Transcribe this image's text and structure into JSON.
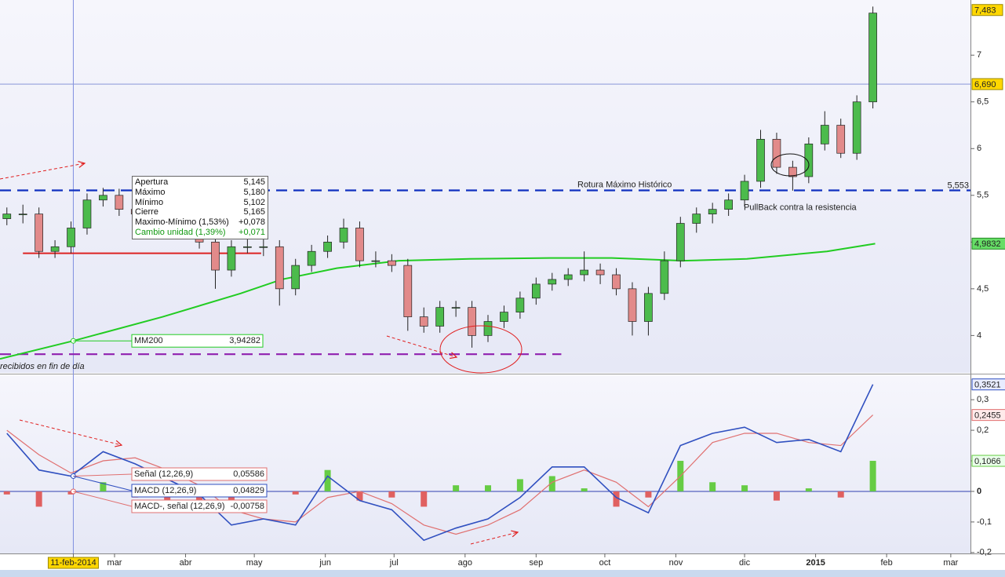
{
  "chart_data": [
    {
      "type": "candlestick",
      "xlim": [
        9,
        432.6
      ],
      "ylim": [
        3.6,
        7.59
      ],
      "xticks": [
        {
          "value": 41,
          "label": "11-feb-2014"
        },
        {
          "value": 59,
          "label": "mar"
        },
        {
          "value": 90,
          "label": "abr"
        },
        {
          "value": 120,
          "label": "may"
        },
        {
          "value": 151,
          "label": "jun"
        },
        {
          "value": 181,
          "label": "jul"
        },
        {
          "value": 212,
          "label": "ago"
        },
        {
          "value": 243,
          "label": "sep"
        },
        {
          "value": 273,
          "label": "oct"
        },
        {
          "value": 304,
          "label": "nov"
        },
        {
          "value": 334,
          "label": "dic"
        },
        {
          "value": 365,
          "label": "2015"
        },
        {
          "value": 396,
          "label": "feb"
        },
        {
          "value": 424,
          "label": "mar"
        }
      ],
      "crosshair_xtick": 0,
      "yticks": [
        4,
        {
          "value": 4.5,
          "label": "4,5"
        },
        5,
        {
          "value": 5.5,
          "label": "5,5"
        },
        6,
        {
          "value": 6.5,
          "label": "6,5"
        },
        7
      ],
      "up_color": "#4cbb4c",
      "down_color": "#e28a8a",
      "candles": [
        [
          12,
          5.25,
          5.37,
          5.18,
          5.3
        ],
        [
          19,
          5.3,
          5.4,
          5.2,
          5.3
        ],
        [
          26,
          5.3,
          5.37,
          4.83,
          4.9
        ],
        [
          33,
          4.9,
          5.02,
          4.83,
          4.95
        ],
        [
          40,
          4.95,
          5.22,
          4.88,
          5.15
        ],
        [
          47,
          5.15,
          5.52,
          5.08,
          5.45
        ],
        [
          54,
          5.45,
          5.58,
          5.38,
          5.5
        ],
        [
          61,
          5.5,
          5.57,
          5.28,
          5.35
        ],
        [
          68,
          5.35,
          5.42,
          5.23,
          5.3
        ],
        [
          75,
          5.3,
          5.37,
          5.18,
          5.25
        ],
        [
          82,
          5.25,
          5.32,
          5.13,
          5.2
        ],
        [
          89,
          5.2,
          5.27,
          5.03,
          5.1
        ],
        [
          96,
          5.1,
          5.17,
          4.93,
          5.0
        ],
        [
          103,
          5.0,
          5.07,
          4.5,
          4.7
        ],
        [
          110,
          4.7,
          5.02,
          4.63,
          4.95
        ],
        [
          117,
          4.95,
          5.05,
          4.88,
          4.95
        ],
        [
          124,
          4.95,
          5.1,
          4.85,
          4.95
        ],
        [
          131,
          4.95,
          5.02,
          4.32,
          4.5
        ],
        [
          138,
          4.5,
          4.82,
          4.43,
          4.75
        ],
        [
          145,
          4.75,
          4.97,
          4.68,
          4.9
        ],
        [
          152,
          4.9,
          5.07,
          4.83,
          5.0
        ],
        [
          159,
          5.0,
          5.25,
          4.93,
          5.15
        ],
        [
          166,
          5.15,
          5.22,
          4.73,
          4.8
        ],
        [
          173,
          4.8,
          4.9,
          4.73,
          4.8
        ],
        [
          180,
          4.8,
          4.87,
          4.68,
          4.75
        ],
        [
          187,
          4.75,
          4.82,
          4.05,
          4.2
        ],
        [
          194,
          4.2,
          4.3,
          4.03,
          4.1
        ],
        [
          201,
          4.1,
          4.37,
          4.03,
          4.3
        ],
        [
          208,
          4.3,
          4.37,
          4.2,
          4.3
        ],
        [
          215,
          4.3,
          4.37,
          3.87,
          4.0
        ],
        [
          222,
          4.0,
          4.22,
          3.93,
          4.15
        ],
        [
          229,
          4.15,
          4.32,
          4.08,
          4.25
        ],
        [
          236,
          4.25,
          4.47,
          4.18,
          4.4
        ],
        [
          243,
          4.4,
          4.62,
          4.33,
          4.55
        ],
        [
          250,
          4.55,
          4.67,
          4.48,
          4.6
        ],
        [
          257,
          4.6,
          4.72,
          4.53,
          4.65
        ],
        [
          264,
          4.65,
          4.9,
          4.58,
          4.7
        ],
        [
          271,
          4.7,
          4.77,
          4.55,
          4.65
        ],
        [
          278,
          4.65,
          4.72,
          4.43,
          4.5
        ],
        [
          285,
          4.5,
          4.57,
          4.0,
          4.15
        ],
        [
          292,
          4.15,
          4.52,
          4.0,
          4.45
        ],
        [
          299,
          4.45,
          4.9,
          4.38,
          4.8
        ],
        [
          306,
          4.8,
          5.27,
          4.73,
          5.2
        ],
        [
          313,
          5.2,
          5.37,
          5.1,
          5.3
        ],
        [
          320,
          5.3,
          5.42,
          5.2,
          5.35
        ],
        [
          327,
          5.35,
          5.52,
          5.28,
          5.45
        ],
        [
          334,
          5.45,
          5.72,
          5.38,
          5.65
        ],
        [
          341,
          5.65,
          6.2,
          5.58,
          6.1
        ],
        [
          348,
          6.1,
          6.17,
          5.73,
          5.8
        ],
        [
          355,
          5.8,
          5.87,
          5.55,
          5.7
        ],
        [
          362,
          5.7,
          6.12,
          5.63,
          6.05
        ],
        [
          369,
          6.05,
          6.4,
          5.98,
          6.25
        ],
        [
          376,
          6.25,
          6.32,
          5.9,
          5.95
        ],
        [
          383,
          5.95,
          6.57,
          5.88,
          6.5
        ],
        [
          390,
          6.5,
          7.52,
          6.43,
          7.45
        ]
      ],
      "mm200": {
        "name": "MM200",
        "color": "#22cc22",
        "x": [
          9,
          41,
          80,
          114,
          132,
          156,
          183,
          214,
          249,
          276,
          307,
          335,
          370,
          391
        ],
        "values": [
          3.75,
          3.94282,
          4.2,
          4.45,
          4.6,
          4.72,
          4.8,
          4.82,
          4.83,
          4.83,
          4.8,
          4.82,
          4.9,
          4.9832
        ],
        "cursor_label": "3,94282",
        "end_label": "4,9832"
      },
      "hlines": [
        {
          "value": 5.553,
          "label": "5,553",
          "color": "#1030c0",
          "dashed": true,
          "x": [
            9,
            432.6
          ]
        },
        {
          "value": 6.69,
          "label": "6,690",
          "color": "#8896d8",
          "dashed": false,
          "x": [
            9,
            432.6
          ]
        },
        {
          "value": 4.88,
          "color": "#dd2222",
          "dashed": false,
          "x": [
            19,
            123
          ]
        },
        {
          "value": 3.8,
          "color": "#9020b0",
          "dashed": true,
          "x": [
            9,
            254
          ]
        }
      ],
      "last_price": {
        "value": 7.483,
        "label": "7,483"
      },
      "annotations": [
        "Rotura Máximo Histórico",
        "PullBack contra la resistencia",
        "recibidos en fin de día"
      ],
      "tooltip": [
        {
          "label": "Apertura",
          "value": "5,145"
        },
        {
          "label": "Máximo",
          "value": "5,180"
        },
        {
          "label": "Mínimo",
          "value": "5,102"
        },
        {
          "label": "Cierre",
          "value": "5,165"
        },
        {
          "label": "Maximo-Mínimo (1,53%)",
          "value": "+0,078"
        },
        {
          "label": "Cambio unidad (1,39%)",
          "value": "+0,071"
        }
      ]
    },
    {
      "type": "macd",
      "xlim": [
        9,
        432.6
      ],
      "ylim": [
        -0.203,
        0.38
      ],
      "yticks": [
        {
          "value": -0.2,
          "label": "-0,2"
        },
        {
          "value": -0.1,
          "label": "-0,1"
        },
        0,
        {
          "value": 0.1,
          "label": "0,1"
        },
        {
          "value": 0.2,
          "label": "0,2"
        },
        {
          "value": 0.3,
          "label": "0,3"
        }
      ],
      "x": [
        12,
        26,
        40,
        54,
        68,
        82,
        96,
        110,
        124,
        138,
        152,
        166,
        180,
        194,
        208,
        222,
        236,
        250,
        264,
        278,
        292,
        306,
        320,
        334,
        348,
        362,
        376,
        390
      ],
      "series": [
        {
          "name": "Señal (12,26,9)",
          "color": "#e07070",
          "cursor_label": "0,05586",
          "end_label": "0,2455",
          "values": [
            0.2,
            0.12,
            0.06,
            0.1,
            0.11,
            0.07,
            0.02,
            -0.06,
            -0.09,
            -0.1,
            -0.02,
            0.0,
            -0.04,
            -0.11,
            -0.14,
            -0.11,
            -0.06,
            0.03,
            0.07,
            0.03,
            -0.05,
            0.05,
            0.16,
            0.19,
            0.19,
            0.16,
            0.15,
            0.25
          ]
        },
        {
          "name": "MACD (12,26,9)",
          "color": "#3050c0",
          "cursor_label": "0,04829",
          "end_label": "0,3521",
          "values": [
            0.19,
            0.07,
            0.05,
            0.13,
            0.09,
            0.04,
            -0.01,
            -0.11,
            -0.09,
            -0.11,
            0.05,
            -0.03,
            -0.06,
            -0.16,
            -0.12,
            -0.09,
            -0.02,
            0.08,
            0.08,
            -0.02,
            -0.07,
            0.15,
            0.19,
            0.21,
            0.16,
            0.17,
            0.13,
            0.35
          ]
        },
        {
          "name": "MACD-, señal (12,26,9)",
          "color": "#e06060",
          "up_color": "#66cc44",
          "cursor_label": "-0,00758",
          "end_label": "0,1066",
          "values": [
            -0.01,
            -0.05,
            -0.01,
            0.03,
            -0.02,
            -0.03,
            -0.03,
            -0.05,
            0,
            -0.01,
            0.07,
            -0.03,
            -0.02,
            -0.05,
            0.02,
            0.02,
            0.04,
            0.05,
            0.01,
            -0.05,
            -0.02,
            0.1,
            0.03,
            0.02,
            -0.03,
            0.01,
            -0.02,
            0.1
          ]
        }
      ]
    }
  ]
}
